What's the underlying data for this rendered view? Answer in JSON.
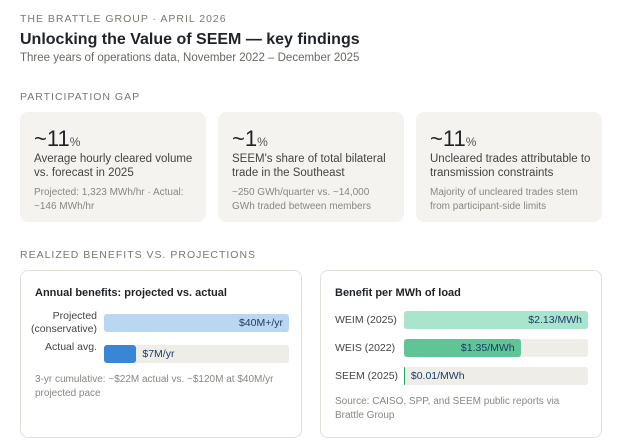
{
  "header": {
    "kicker": "THE BRATTLE GROUP · APRIL 2026",
    "title": "Unlocking the Value of SEEM — key findings",
    "subtitle": "Three years of operations data, November 2022 – December 2025"
  },
  "participation": {
    "heading": "PARTICIPATION GAP",
    "cards": [
      {
        "stat": "~11",
        "unit": "%",
        "desc": "Average hourly cleared volume vs. forecast in 2025",
        "note": "Projected: 1,323 MWh/hr · Actual: ~146 MWh/hr"
      },
      {
        "stat": "~1",
        "unit": "%",
        "desc": "SEEM's share of total bilateral trade in the Southeast",
        "note": "~250 GWh/quarter vs. ~14,000 GWh traded between members"
      },
      {
        "stat": "~11",
        "unit": "%",
        "desc": "Uncleared trades attributable to transmission constraints",
        "note": "Majority of uncleared trades stem from participant-side limits"
      }
    ]
  },
  "benefits": {
    "heading": "REALIZED BENEFITS VS. PROJECTIONS",
    "annual": {
      "title": "Annual benefits: projected vs. actual",
      "xlim": [
        0,
        40
      ],
      "bars": [
        {
          "label": "Projected (conservative)",
          "value": 40,
          "value_label": "$40M+/yr",
          "color": "#b9d6f3"
        },
        {
          "label": "Actual avg.",
          "value": 7,
          "value_label": "$7M/yr",
          "color": "#3a86d6"
        }
      ],
      "note": "3-yr cumulative: ~$22M actual vs. ~$120M at $40M/yr projected pace"
    },
    "per_mwh": {
      "title": "Benefit per MWh of load",
      "xlim": [
        0,
        2.13
      ],
      "bars": [
        {
          "label": "WEIM (2025)",
          "value": 2.13,
          "value_label": "$2.13/MWh",
          "color": "#a9e4cd"
        },
        {
          "label": "WEIS (2022)",
          "value": 1.35,
          "value_label": "$1.35/MWh",
          "color": "#5fc596"
        },
        {
          "label": "SEEM (2025)",
          "value": 0.01,
          "value_label": "$0.01/MWh",
          "color": "#1f9e6a"
        }
      ],
      "note": "Source: CAISO, SPP, and SEEM public reports via Brattle Group"
    }
  }
}
